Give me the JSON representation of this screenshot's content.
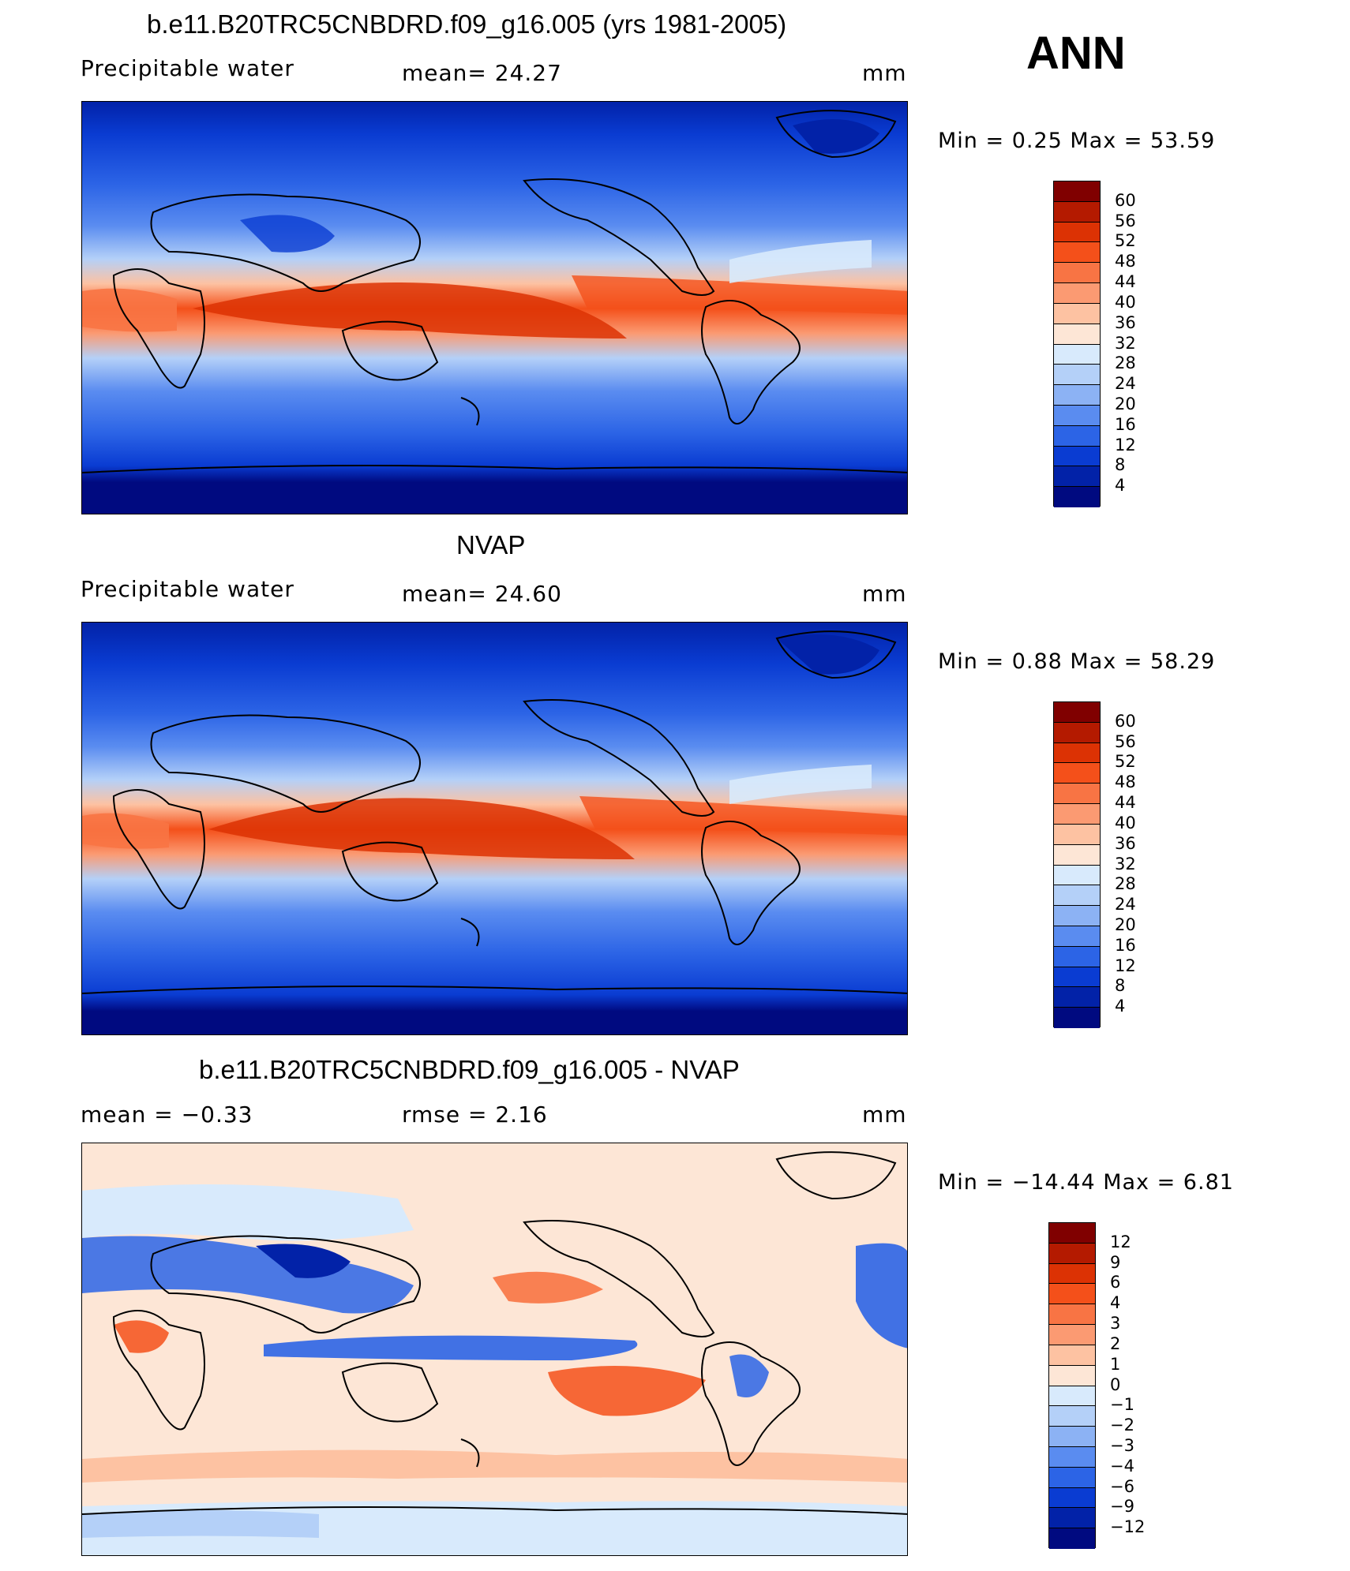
{
  "season": "ANN",
  "panels": [
    {
      "title": "b.e11.B20TRC5CNBDRD.f09_g16.005 (yrs 1981-2005)",
      "left_label": "Precipitable  water",
      "center_label": "mean=   24.27",
      "units": "mm",
      "minmax": "Min  =     0.25  Max  =    53.59",
      "legend_labels": [
        "60",
        "56",
        "52",
        "48",
        "44",
        "40",
        "36",
        "32",
        "28",
        "24",
        "20",
        "16",
        "12",
        "8",
        "4"
      ]
    },
    {
      "title": "NVAP",
      "left_label": "Precipitable  water",
      "center_label": "mean=   24.60",
      "units": "mm",
      "minmax": "Min  =     0.88  Max  =    58.29",
      "legend_labels": [
        "60",
        "56",
        "52",
        "48",
        "44",
        "40",
        "36",
        "32",
        "28",
        "24",
        "20",
        "16",
        "12",
        "8",
        "4"
      ]
    },
    {
      "title": "b.e11.B20TRC5CNBDRD.f09_g16.005 - NVAP",
      "left_label": "mean  =    −0.33",
      "center_label": "rmse  =     2.16",
      "units": "mm",
      "minmax": "Min  =  −14.44  Max  =     6.81",
      "legend_labels": [
        "12",
        "9",
        "6",
        "4",
        "3",
        "2",
        "1",
        "0",
        "−1",
        "−2",
        "−3",
        "−4",
        "−6",
        "−9",
        "−12"
      ]
    }
  ],
  "colors": {
    "field_scale": [
      "#800000",
      "#b41a00",
      "#dc3204",
      "#f4501a",
      "#f87444",
      "#fb9a72",
      "#fdc2a2",
      "#fde6d6",
      "#d8eafc",
      "#b4d0f8",
      "#8cb2f4",
      "#5a8cf0",
      "#2c64e6",
      "#0a3cd2",
      "#0222a8",
      "#000a80"
    ],
    "diff_scale": [
      "#800000",
      "#b41a00",
      "#dc3204",
      "#f4501a",
      "#f87444",
      "#fb9a72",
      "#fdc2a2",
      "#fde6d6",
      "#d8eafc",
      "#b4d0f8",
      "#8cb2f4",
      "#5a8cf0",
      "#2c64e6",
      "#0a3cd2",
      "#0222a8",
      "#000a80"
    ]
  }
}
